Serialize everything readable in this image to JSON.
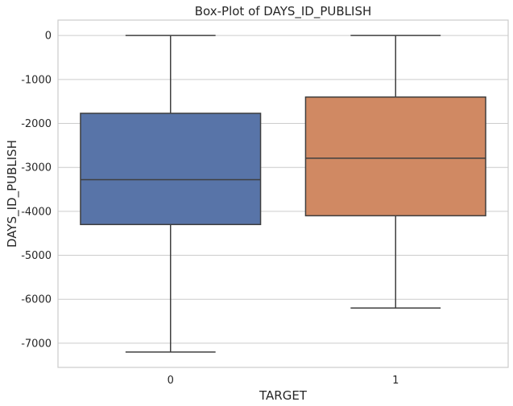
{
  "chart_data": {
    "type": "box",
    "title": "Box-Plot of DAYS_ID_PUBLISH",
    "xlabel": "TARGET",
    "ylabel": "DAYS_ID_PUBLISH",
    "categories": [
      "0",
      "1"
    ],
    "ylim": [
      -7550,
      350
    ],
    "yticks": [
      0,
      -1000,
      -2000,
      -3000,
      -4000,
      -5000,
      -6000,
      -7000
    ],
    "grid": true,
    "boxes": [
      {
        "category": "0",
        "whisker_low": -7200,
        "q1": -4300,
        "median": -3280,
        "q3": -1770,
        "whisker_high": 0,
        "color": "#5874a8"
      },
      {
        "category": "1",
        "whisker_low": -6200,
        "q1": -4100,
        "median": -2790,
        "q3": -1400,
        "whisker_high": 0,
        "color": "#d08963"
      }
    ]
  }
}
